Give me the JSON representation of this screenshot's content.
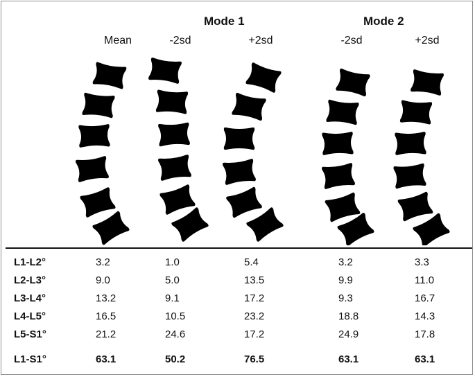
{
  "groups": [
    {
      "title": "Mode 1"
    },
    {
      "title": "Mode 2"
    }
  ],
  "columns": [
    {
      "label": "Mean"
    },
    {
      "label": "-2sd"
    },
    {
      "label": "+2sd"
    },
    {
      "label": "-2sd"
    },
    {
      "label": "+2sd"
    }
  ],
  "rows": [
    {
      "label": "L1-L2°",
      "values": [
        "3.2",
        "1.0",
        "5.4",
        "3.2",
        "3.3"
      ]
    },
    {
      "label": "L2-L3°",
      "values": [
        "9.0",
        "5.0",
        "13.5",
        "9.9",
        "11.0"
      ]
    },
    {
      "label": "L3-L4°",
      "values": [
        "13.2",
        "9.1",
        "17.2",
        "9.3",
        "16.7"
      ]
    },
    {
      "label": "L4-L5°",
      "values": [
        "16.5",
        "10.5",
        "23.2",
        "18.8",
        "14.3"
      ]
    },
    {
      "label": "L5-S1°",
      "values": [
        "21.2",
        "24.6",
        "17.2",
        "24.9",
        "17.8"
      ]
    }
  ],
  "total_row": {
    "label": "L1-S1°",
    "values": [
      "63.1",
      "50.2",
      "76.5",
      "63.1",
      "63.1"
    ]
  },
  "colors": {
    "vertebra": "#000000",
    "divider": "#111111"
  }
}
